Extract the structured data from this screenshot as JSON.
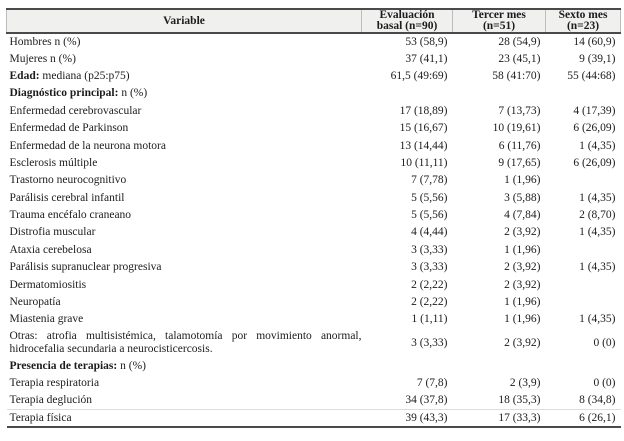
{
  "document": {
    "kind": "clinical-statistics-table",
    "language": "es"
  },
  "style": {
    "header_bg": "#f0f0ef",
    "heavy_border": "#4a4a4a",
    "light_border": "#bcbcbc",
    "faint_row_line": "#dddddd",
    "text_color": "#1c1c1c"
  },
  "table": {
    "columns": [
      {
        "label": "Variable"
      },
      {
        "line1": "Evaluación",
        "line2": "basal (n=90)"
      },
      {
        "line1": "Tercer mes",
        "line2": "(n=51)"
      },
      {
        "line1": "Sexto mes",
        "line2": "(n=23)"
      }
    ],
    "rows": [
      {
        "label_bold": "",
        "label": "Hombres n (%)",
        "values": [
          "53 (58,9)",
          "28 (54,9)",
          "14 (60,9)"
        ]
      },
      {
        "label_bold": "",
        "label": "Mujeres n (%)",
        "values": [
          "37 (41,1)",
          "23 (45,1)",
          "9 (39,1)"
        ]
      },
      {
        "label_bold": "Edad:",
        "label": " mediana (p25:p75)",
        "values": [
          "61,5 (49:69)",
          "58 (41:70)",
          "55 (44:68)"
        ]
      },
      {
        "label_bold": "Diagnóstico principal:",
        "label": " n (%)",
        "values": [
          "",
          "",
          ""
        ],
        "section": true
      },
      {
        "label_bold": "",
        "label": "Enfermedad cerebrovascular",
        "values": [
          "17 (18,89)",
          "7 (13,73)",
          "4 (17,39)"
        ]
      },
      {
        "label_bold": "",
        "label": "Enfermedad de Parkinson",
        "values": [
          "15 (16,67)",
          "10 (19,61)",
          "6 (26,09)"
        ]
      },
      {
        "label_bold": "",
        "label": "Enfermedad de la neurona motora",
        "values": [
          "13 (14,44)",
          "6 (11,76)",
          "1 (4,35)"
        ]
      },
      {
        "label_bold": "",
        "label": "Esclerosis múltiple",
        "values": [
          "10 (11,11)",
          "9 (17,65)",
          "6 (26,09)"
        ]
      },
      {
        "label_bold": "",
        "label": "Trastorno neurocognitivo",
        "values": [
          "7 (7,78)",
          "1 (1,96)",
          ""
        ]
      },
      {
        "label_bold": "",
        "label": "Parálisis cerebral infantil",
        "values": [
          "5 (5,56)",
          "3 (5,88)",
          "1 (4,35)"
        ]
      },
      {
        "label_bold": "",
        "label": "Trauma encéfalo craneano",
        "values": [
          "5 (5,56)",
          "4 (7,84)",
          "2 (8,70)"
        ]
      },
      {
        "label_bold": "",
        "label": "Distrofia muscular",
        "values": [
          "4 (4,44)",
          "2 (3,92)",
          "1 (4,35)"
        ]
      },
      {
        "label_bold": "",
        "label": "Ataxia cerebelosa",
        "values": [
          "3 (3,33)",
          "1 (1,96)",
          ""
        ]
      },
      {
        "label_bold": "",
        "label": "Parálisis supranuclear progresiva",
        "values": [
          "3 (3,33)",
          "2 (3,92)",
          "1 (4,35)"
        ]
      },
      {
        "label_bold": "",
        "label": "Dermatomiositis",
        "values": [
          "2 (2,22)",
          "2 (3,92)",
          ""
        ]
      },
      {
        "label_bold": "",
        "label": "Neuropatía",
        "values": [
          "2 (2,22)",
          "1 (1,96)",
          ""
        ]
      },
      {
        "label_bold": "",
        "label": "Miastenia grave",
        "values": [
          "1 (1,11)",
          "1 (1,96)",
          "1 (4,35)"
        ]
      },
      {
        "label_bold": "",
        "label": "Otras: atrofia multisistémica, talamotomía por movimiento anormal,",
        "label_line2": "hidrocefalia secundaria a neurocisticercosis.",
        "values": [
          "3 (3,33)",
          "2 (3,92)",
          "0 (0)"
        ],
        "double": true
      },
      {
        "label_bold": "Presencia de terapias:",
        "label": " n (%)",
        "values": [
          "",
          "",
          ""
        ],
        "section": true
      },
      {
        "label_bold": "",
        "label": "Terapia respiratoria",
        "values": [
          "7 (7,8)",
          "2 (3,9)",
          "0 (0)"
        ]
      },
      {
        "label_bold": "",
        "label": "Terapia deglución",
        "values": [
          "34 (37,8)",
          "18 (35,3)",
          "8 (34,8)"
        ]
      },
      {
        "label_bold": "",
        "label": "Terapia física",
        "values": [
          "39 (43,3)",
          "17 (33,3)",
          "6 (26,1)"
        ],
        "faint_top": true
      }
    ]
  }
}
